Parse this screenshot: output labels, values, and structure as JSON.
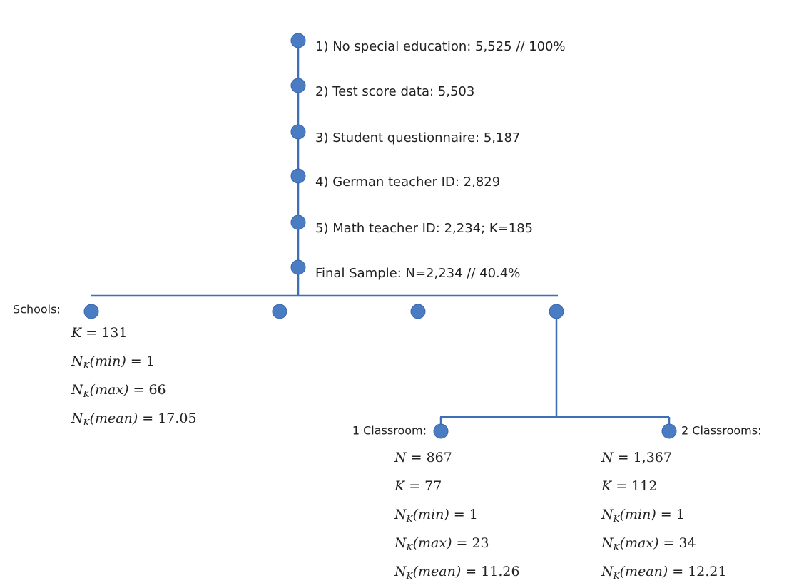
{
  "steps": [
    "1) No special education: 5,525 // 100%",
    "2) Test score data: 5,503",
    "3) Student questionnaire: 5,187",
    "4) German teacher ID: 2,829",
    "5) Math teacher ID: 2,234; K=185",
    "Final Sample: N=2,234 // 40.4%"
  ],
  "schools": {
    "label": "Schools:",
    "stats": [
      {
        "base": "K",
        "eq": "= 131"
      },
      {
        "base": "N",
        "sub": "K",
        "arg": "(min)",
        "eq": "= 1"
      },
      {
        "base": "N",
        "sub": "K",
        "arg": "(max)",
        "eq": "= 66"
      },
      {
        "base": "N",
        "sub": "K",
        "arg": "(mean)",
        "eq": "= 17.05"
      }
    ]
  },
  "classrooms": [
    {
      "label": "1 Classroom:",
      "stats": [
        {
          "base": "N",
          "eq": "= 867"
        },
        {
          "base": "K",
          "eq": "= 77"
        },
        {
          "base": "N",
          "sub": "K",
          "arg": "(min)",
          "eq": "= 1"
        },
        {
          "base": "N",
          "sub": "K",
          "arg": "(max)",
          "eq": "= 23"
        },
        {
          "base": "N",
          "sub": "K",
          "arg": "(mean)",
          "eq": "= 11.26"
        }
      ]
    },
    {
      "label": "2 Classrooms:",
      "stats": [
        {
          "base": "N",
          "eq": "= 1,367"
        },
        {
          "base": "K",
          "eq": "= 112"
        },
        {
          "base": "N",
          "sub": "K",
          "arg": "(min)",
          "eq": "= 1"
        },
        {
          "base": "N",
          "sub": "K",
          "arg": "(max)",
          "eq": "= 34"
        },
        {
          "base": "N",
          "sub": "K",
          "arg": "(mean)",
          "eq": "= 12.21"
        }
      ]
    }
  ]
}
